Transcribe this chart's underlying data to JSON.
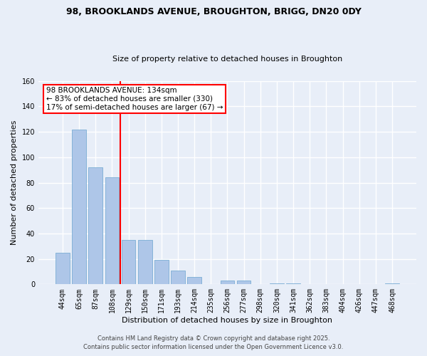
{
  "title1": "98, BROOKLANDS AVENUE, BROUGHTON, BRIGG, DN20 0DY",
  "title2": "Size of property relative to detached houses in Broughton",
  "xlabel": "Distribution of detached houses by size in Broughton",
  "ylabel": "Number of detached properties",
  "categories": [
    "44sqm",
    "65sqm",
    "87sqm",
    "108sqm",
    "129sqm",
    "150sqm",
    "171sqm",
    "193sqm",
    "214sqm",
    "235sqm",
    "256sqm",
    "277sqm",
    "298sqm",
    "320sqm",
    "341sqm",
    "362sqm",
    "383sqm",
    "404sqm",
    "426sqm",
    "447sqm",
    "468sqm"
  ],
  "values": [
    25,
    122,
    92,
    84,
    35,
    35,
    19,
    11,
    6,
    0,
    3,
    3,
    0,
    1,
    1,
    0,
    0,
    0,
    0,
    0,
    1
  ],
  "bar_color": "#aec6e8",
  "bar_edge_color": "#7aadd4",
  "vline_x_index": 3.5,
  "vline_color": "red",
  "annotation_text": "98 BROOKLANDS AVENUE: 134sqm\n← 83% of detached houses are smaller (330)\n17% of semi-detached houses are larger (67) →",
  "annotation_box_color": "white",
  "annotation_box_edge_color": "red",
  "ylim": [
    0,
    160
  ],
  "yticks": [
    0,
    20,
    40,
    60,
    80,
    100,
    120,
    140,
    160
  ],
  "footer1": "Contains HM Land Registry data © Crown copyright and database right 2025.",
  "footer2": "Contains public sector information licensed under the Open Government Licence v3.0.",
  "bg_color": "#e8eef8",
  "plot_bg_color": "#e8eef8",
  "title1_fontsize": 9,
  "title2_fontsize": 8,
  "annotation_fontsize": 7.5,
  "ylabel_fontsize": 8,
  "xlabel_fontsize": 8,
  "tick_fontsize": 7
}
